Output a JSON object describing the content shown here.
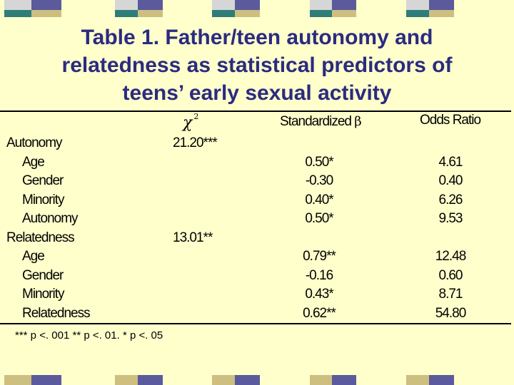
{
  "colors": {
    "background": "#ffffcc",
    "title": "#2b2b80",
    "deco_gray": "#d6d6d6",
    "deco_teal": "#2e7d78",
    "deco_purple": "#5a5a9c",
    "deco_tan": "#cdbf80"
  },
  "title": {
    "line1": "Table 1.  Father/teen autonomy and",
    "line2": "relatedness as statistical predictors of",
    "line3": "teens’ early sexual activity"
  },
  "table": {
    "headers": {
      "chi_symbol": "χ",
      "chi_superscript": "2",
      "standardized": "Standardized",
      "beta_symbol": "β",
      "odds_ratio": "Odds Ratio"
    },
    "rows": [
      {
        "label": "Autonomy",
        "level": "main",
        "chi2": "21.20***",
        "beta": "",
        "odds": ""
      },
      {
        "label": "Age",
        "level": "sub",
        "chi2": "",
        "beta": "0.50*",
        "odds": "4.61"
      },
      {
        "label": "Gender",
        "level": "sub",
        "chi2": "",
        "beta": "-0.30",
        "odds": "0.40"
      },
      {
        "label": "Minority",
        "level": "sub",
        "chi2": "",
        "beta": "0.40*",
        "odds": "6.26"
      },
      {
        "label": "Autonomy",
        "level": "sub",
        "chi2": "",
        "beta": "0.50*",
        "odds": "9.53"
      },
      {
        "label": "Relatedness",
        "level": "main",
        "chi2": "13.01**",
        "beta": "",
        "odds": ""
      },
      {
        "label": "Age",
        "level": "sub",
        "chi2": "",
        "beta": "0.79**",
        "odds": "12.48"
      },
      {
        "label": "Gender",
        "level": "sub",
        "chi2": "",
        "beta": "-0.16",
        "odds": "0.60"
      },
      {
        "label": "Minority",
        "level": "sub",
        "chi2": "",
        "beta": "0.43*",
        "odds": "8.71"
      },
      {
        "label": "Relatedness",
        "level": "sub",
        "chi2": "",
        "beta": "0.62**",
        "odds": "54.80"
      }
    ],
    "footnote": "*** p <. 001 ** p <. 01.  * p <. 05"
  }
}
